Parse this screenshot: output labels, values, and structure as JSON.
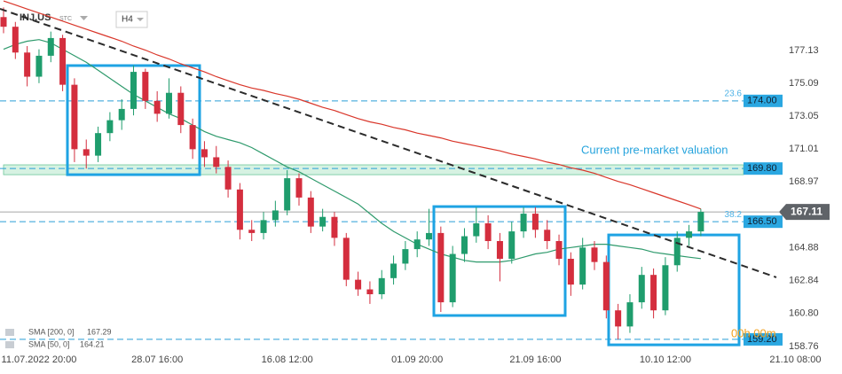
{
  "header": {
    "symbol": "INJ.US",
    "exchange": "STC",
    "interval": "H4"
  },
  "chart_data": {
    "type": "candlestick",
    "categories": [
      null,
      null,
      null,
      "11.07.2022 20:00",
      null,
      null,
      null,
      null,
      null,
      null,
      null,
      null,
      null,
      "28.07 16:00",
      null,
      null,
      null,
      null,
      null,
      null,
      null,
      null,
      null,
      null,
      "16.08 12:00",
      null,
      null,
      null,
      null,
      null,
      null,
      null,
      null,
      null,
      null,
      "01.09 20:00",
      null,
      null,
      null,
      null,
      null,
      null,
      null,
      null,
      null,
      "21.09 16:00",
      null,
      null,
      null,
      null,
      null,
      null,
      null,
      null,
      null,
      null,
      "10.10 12:00",
      null,
      null,
      null,
      null,
      null,
      null,
      null,
      null,
      null,
      null,
      "21.10 08:00"
    ],
    "open": [
      179.2,
      178.6,
      177.0,
      175.5,
      176.8,
      177.9,
      175.0,
      171.0,
      170.6,
      172.0,
      172.8,
      173.5,
      175.8,
      174.0,
      173.2,
      174.5,
      172.5,
      171.0,
      170.5,
      169.9,
      168.5,
      166.0,
      165.8,
      166.6,
      167.2,
      169.2,
      168.0,
      166.2,
      166.8,
      165.5,
      162.9,
      162.3,
      162.0,
      163.0,
      163.9,
      164.8,
      165.4,
      165.8,
      161.5,
      164.5,
      165.6,
      166.4,
      165.3,
      164.2,
      165.9,
      167.0,
      166.0,
      165.3,
      164.2,
      162.6,
      164.9,
      164.0,
      161.0,
      160.0,
      161.5,
      163.2,
      161.0,
      163.8,
      165.5,
      165.9,
      null,
      null,
      null,
      null,
      null,
      null,
      null,
      null
    ],
    "high": [
      179.8,
      178.9,
      177.4,
      177.2,
      178.3,
      178.1,
      175.4,
      171.6,
      172.4,
      173.3,
      174.1,
      176.2,
      176.0,
      174.6,
      175.4,
      174.9,
      172.9,
      171.5,
      171.2,
      170.3,
      168.9,
      166.6,
      167.1,
      167.8,
      169.7,
      169.5,
      168.4,
      167.3,
      167.1,
      165.8,
      163.4,
      162.8,
      163.5,
      164.4,
      165.3,
      165.9,
      167.3,
      166.2,
      165.0,
      166.1,
      167.4,
      166.9,
      165.8,
      166.5,
      167.4,
      167.4,
      166.6,
      165.7,
      164.6,
      165.5,
      165.3,
      164.4,
      161.4,
      162.0,
      163.7,
      163.6,
      164.3,
      165.9,
      166.3,
      167.3,
      null,
      null,
      null,
      null,
      null,
      null,
      null,
      null
    ],
    "low": [
      178.2,
      176.6,
      174.9,
      175.1,
      176.4,
      174.6,
      170.2,
      169.8,
      170.2,
      171.5,
      172.2,
      173.1,
      173.5,
      172.7,
      172.9,
      172.0,
      170.4,
      169.9,
      169.5,
      168.0,
      165.4,
      165.3,
      165.4,
      166.2,
      166.9,
      167.5,
      165.8,
      165.9,
      165.0,
      162.5,
      161.9,
      161.4,
      161.7,
      162.6,
      163.5,
      164.3,
      165.0,
      160.9,
      161.2,
      164.0,
      165.2,
      164.8,
      162.8,
      163.9,
      165.5,
      165.5,
      164.8,
      163.8,
      161.9,
      162.3,
      163.5,
      160.5,
      159.2,
      159.6,
      161.1,
      160.5,
      160.7,
      163.4,
      165.0,
      165.6,
      null,
      null,
      null,
      null,
      null,
      null,
      null,
      null
    ],
    "close": [
      178.6,
      177.0,
      175.5,
      176.8,
      177.9,
      175.0,
      171.0,
      170.6,
      172.0,
      172.8,
      173.5,
      175.8,
      174.0,
      173.2,
      174.5,
      172.5,
      171.0,
      170.5,
      169.9,
      168.5,
      166.0,
      165.8,
      166.6,
      167.2,
      169.2,
      168.0,
      166.2,
      166.8,
      165.5,
      162.9,
      162.3,
      162.0,
      163.0,
      163.9,
      164.8,
      165.4,
      165.8,
      161.5,
      164.5,
      165.6,
      166.4,
      165.3,
      164.2,
      165.9,
      167.0,
      166.0,
      165.3,
      164.2,
      162.6,
      164.9,
      164.0,
      161.0,
      160.0,
      161.5,
      163.2,
      161.0,
      163.8,
      165.5,
      165.9,
      167.11,
      null,
      null,
      null,
      null,
      null,
      null,
      null,
      null
    ],
    "up_color": "#1f9d6d",
    "down_color": "#d42e3e",
    "series": [
      {
        "name": "SMA [200, 0]",
        "color": "#d9362a",
        "value_labels": [
          "167.29"
        ],
        "values": [
          180.2,
          179.95,
          179.7,
          179.45,
          179.2,
          178.95,
          178.7,
          178.45,
          178.2,
          177.95,
          177.7,
          177.4,
          177.15,
          176.85,
          176.6,
          176.3,
          176.05,
          175.8,
          175.5,
          175.25,
          175.0,
          174.8,
          174.65,
          174.45,
          174.3,
          174.1,
          173.85,
          173.6,
          173.4,
          173.15,
          172.9,
          172.7,
          172.55,
          172.35,
          172.2,
          172.0,
          171.85,
          171.7,
          171.5,
          171.35,
          171.2,
          171.05,
          170.9,
          170.7,
          170.55,
          170.4,
          170.2,
          170.05,
          169.85,
          169.7,
          169.5,
          169.25,
          169.0,
          168.8,
          168.55,
          168.3,
          168.05,
          167.8,
          167.55,
          167.29,
          null,
          null,
          null,
          null,
          null,
          null,
          null,
          null
        ]
      },
      {
        "name": "SMA [50, 0]",
        "color": "#2e9a6c",
        "value_labels": [
          "164.21"
        ],
        "values": [
          177.2,
          177.5,
          177.7,
          177.8,
          177.6,
          177.2,
          176.8,
          176.4,
          175.9,
          175.4,
          174.9,
          174.4,
          174.0,
          173.6,
          173.2,
          172.9,
          172.5,
          172.1,
          171.8,
          171.6,
          171.4,
          171.1,
          170.7,
          170.3,
          169.9,
          169.6,
          169.2,
          168.8,
          168.4,
          168.0,
          167.6,
          167.0,
          166.4,
          165.9,
          165.5,
          165.1,
          164.8,
          164.5,
          164.3,
          164.1,
          164.0,
          164.0,
          164.0,
          164.1,
          164.3,
          164.5,
          164.6,
          164.8,
          164.9,
          165.0,
          165.1,
          165.1,
          165.0,
          164.9,
          164.8,
          164.6,
          164.5,
          164.4,
          164.3,
          164.21,
          null,
          null,
          null,
          null,
          null,
          null,
          null,
          null
        ]
      }
    ],
    "ylim": [
      158.26,
      180.26
    ],
    "yticks": [
      177.13,
      175.09,
      173.05,
      171.01,
      168.97,
      164.88,
      162.84,
      {
        "value": 160.8,
        "label": "160.80"
      },
      158.76
    ],
    "levels": {
      "values": [
        174,
        169.8,
        166.5,
        159.2
      ],
      "value_labels": [
        "174.00",
        "169.80",
        "166.50",
        "159.20"
      ],
      "color": "#2a9fd8"
    },
    "fib_labels": [
      {
        "value": 174,
        "label": "23.6"
      },
      {
        "value": 166.5,
        "label": "38.2"
      }
    ],
    "zone": {
      "low": 169.42,
      "high": 170.03
    },
    "last_price": 167.11,
    "trendline": {
      "start": 179.71,
      "end": 163.05
    },
    "boxes": [
      {
        "low": 169.42,
        "high": 176.19
      },
      {
        "low": 160.68,
        "high": 167.44
      },
      {
        "low": 158.86,
        "high": 165.68
      }
    ],
    "annotation": "Current pre-market valuation",
    "countdown": "00h 00m"
  }
}
